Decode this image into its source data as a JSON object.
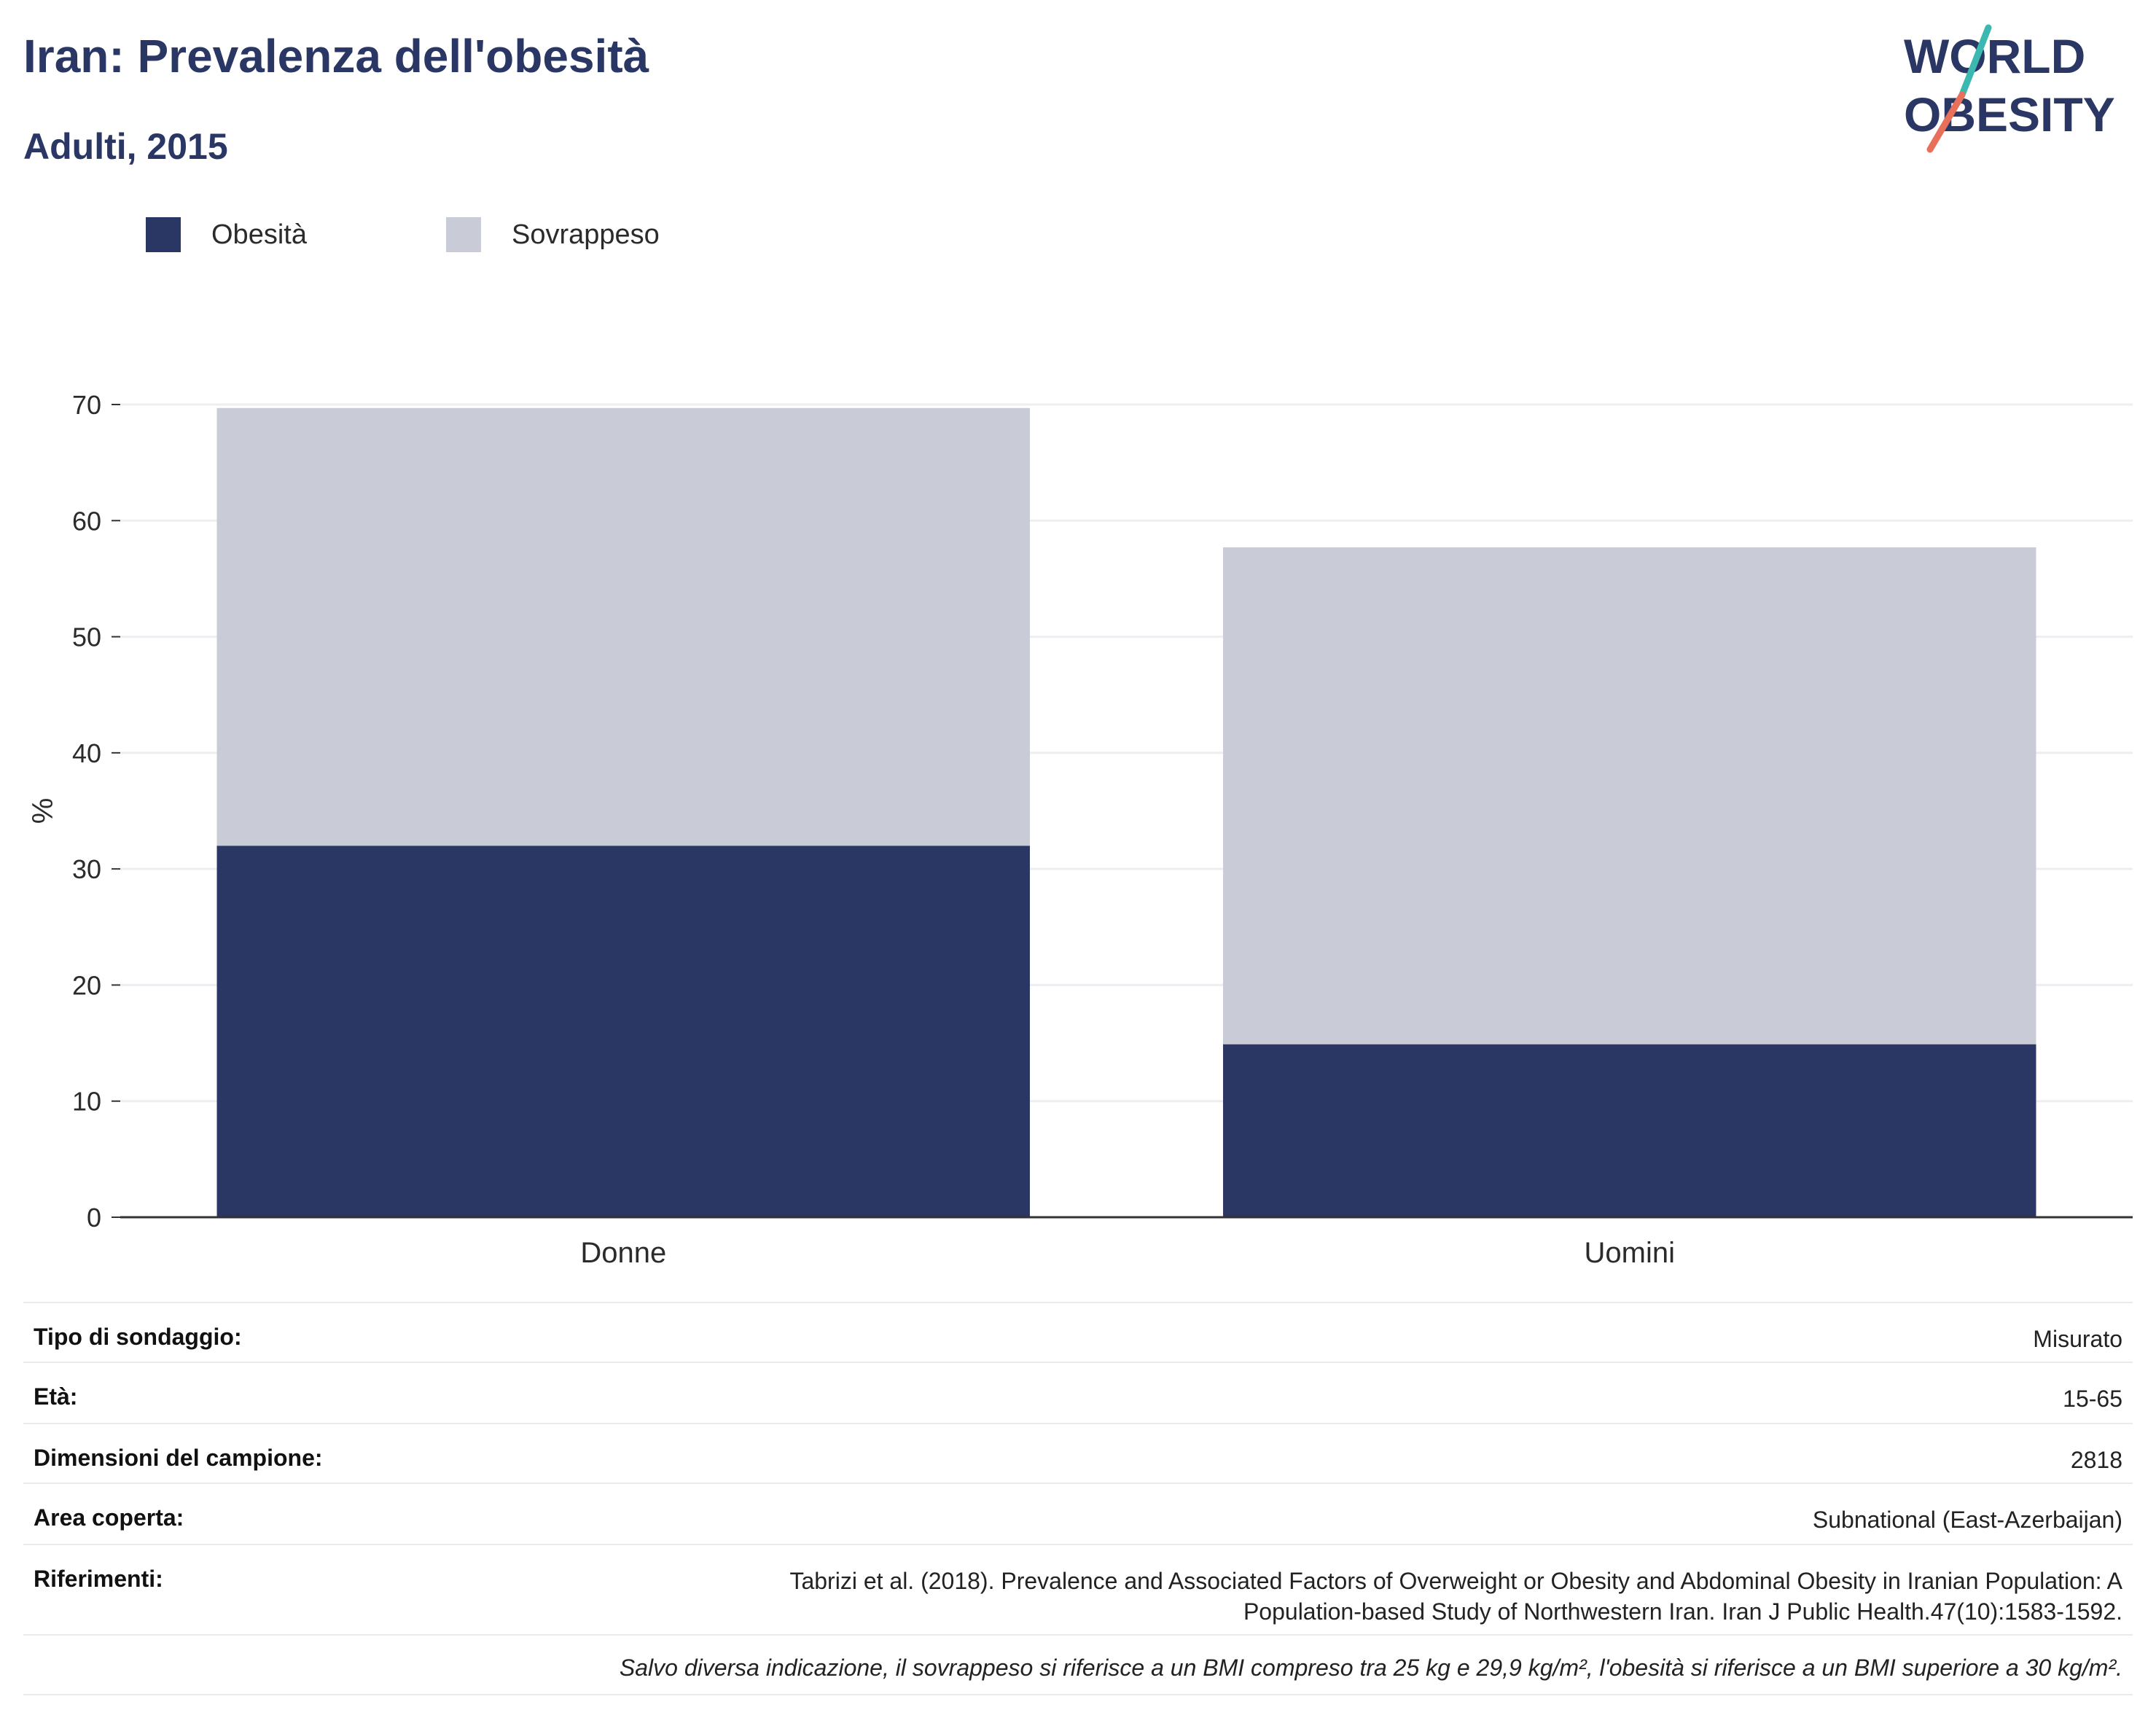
{
  "header": {
    "title": "Iran: Prevalenza dell'obesità",
    "subtitle": "Adulti, 2015"
  },
  "logo": {
    "line1": "WORLD",
    "line2": "OBESITY",
    "accent_top": "#3bb8b0",
    "accent_bottom": "#e8705a"
  },
  "colors": {
    "obesity": "#2a3663",
    "overweight": "#c9cbd7",
    "grid": "#eceef2",
    "axis": "#333333",
    "text": "#2a3663"
  },
  "legend": [
    {
      "label": "Obesità",
      "color": "#2a3663"
    },
    {
      "label": "Sovrappeso",
      "color": "#c9cbd7"
    }
  ],
  "chart_data": {
    "type": "bar",
    "stacked": true,
    "title": "Iran: Prevalenza dell'obesità",
    "subtitle": "Adulti, 2015",
    "categories": [
      "Donne",
      "Uomini"
    ],
    "series": [
      {
        "name": "Obesità",
        "values": [
          32.0,
          14.9
        ]
      },
      {
        "name": "Sovrappeso",
        "values": [
          37.7,
          42.8
        ]
      }
    ],
    "ylabel": "%",
    "xlabel": "",
    "ylim": [
      0,
      70
    ],
    "yticks": [
      0,
      10,
      20,
      30,
      40,
      50,
      60,
      70
    ],
    "grid": true,
    "legend_position": "top-left"
  },
  "info": [
    {
      "label": "Tipo di sondaggio:",
      "value": "Misurato"
    },
    {
      "label": "Età:",
      "value": "15-65"
    },
    {
      "label": "Dimensioni del campione:",
      "value": "2818"
    },
    {
      "label": "Area coperta:",
      "value": "Subnational (East-Azerbaijan)"
    },
    {
      "label": "Riferimenti:",
      "value_lines": [
        "Tabrizi et al. (2018). Prevalence and Associated Factors of Overweight or Obesity and Abdominal Obesity in Iranian Population: A",
        "Population-based Study of Northwestern Iran. Iran J Public Health.47(10):1583-1592."
      ]
    }
  ],
  "note": "Salvo diversa indicazione, il sovrappeso si riferisce a un BMI compreso tra 25 kg e 29,9 kg/m², l'obesità si riferisce a un BMI superiore a 30 kg/m²."
}
